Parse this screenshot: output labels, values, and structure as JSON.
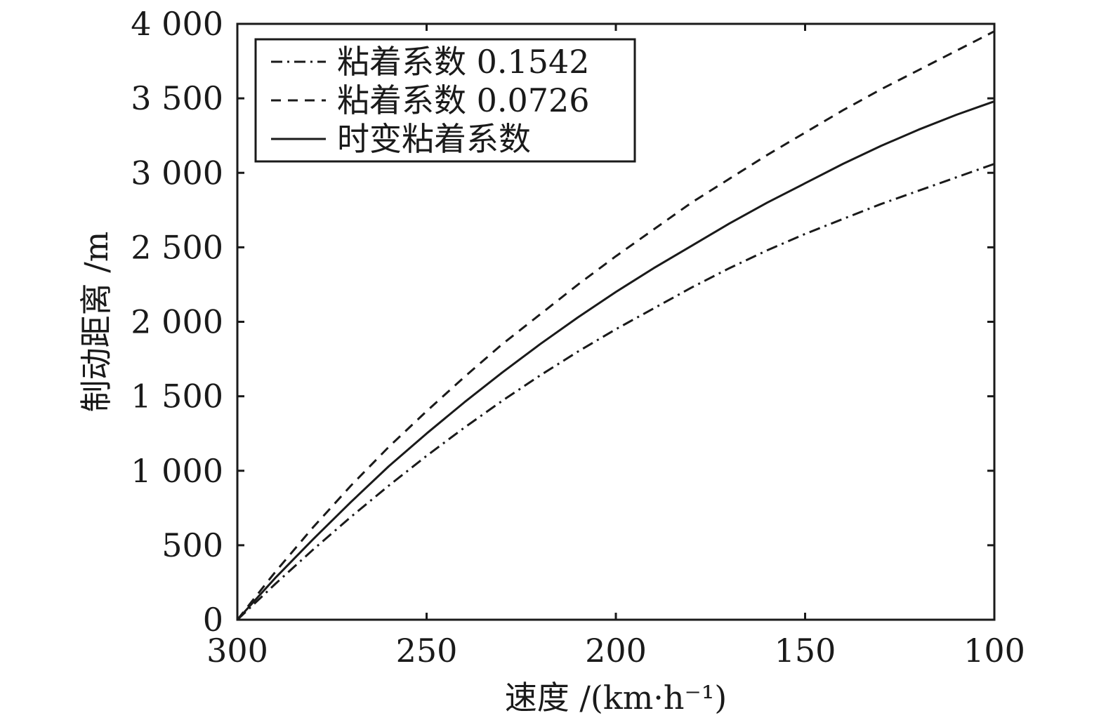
{
  "chart_data": {
    "type": "line",
    "xlabel": "速度 /(km·h⁻¹)",
    "ylabel": "制动距离 /m",
    "xlim": [
      300,
      100
    ],
    "ylim": [
      0,
      4000
    ],
    "x_reversed": true,
    "grid": false,
    "legend_position": "top-left",
    "xticks": [
      300,
      250,
      200,
      150,
      100
    ],
    "xtick_labels": [
      "300",
      "250",
      "200",
      "150",
      "100"
    ],
    "yticks": [
      0,
      500,
      1000,
      1500,
      2000,
      2500,
      3000,
      3500,
      4000
    ],
    "ytick_labels": [
      "0",
      "500",
      "1 000",
      "1 500",
      "2 000",
      "2 500",
      "3 000",
      "3 500",
      "4 000"
    ],
    "x": [
      300,
      290,
      280,
      270,
      260,
      250,
      240,
      230,
      220,
      210,
      200,
      190,
      180,
      170,
      160,
      150,
      140,
      130,
      120,
      110,
      100
    ],
    "series": [
      {
        "name": "粘着系数 0.1542",
        "line_style": "dashdot",
        "color": "#1a1a1a",
        "values": [
          0,
          240,
          470,
          690,
          900,
          1100,
          1290,
          1470,
          1640,
          1800,
          1950,
          2090,
          2230,
          2360,
          2480,
          2590,
          2690,
          2790,
          2880,
          2970,
          3060
        ]
      },
      {
        "name": "粘着系数 0.0726",
        "line_style": "dashed",
        "color": "#1a1a1a",
        "values": [
          0,
          320,
          620,
          900,
          1160,
          1400,
          1630,
          1850,
          2050,
          2250,
          2440,
          2620,
          2800,
          2960,
          3120,
          3270,
          3420,
          3560,
          3690,
          3820,
          3950
        ]
      },
      {
        "name": "时变粘着系数",
        "line_style": "solid",
        "color": "#1a1a1a",
        "values": [
          0,
          280,
          540,
          790,
          1030,
          1250,
          1460,
          1660,
          1850,
          2030,
          2200,
          2360,
          2510,
          2660,
          2800,
          2930,
          3060,
          3180,
          3290,
          3390,
          3480
        ]
      }
    ]
  }
}
